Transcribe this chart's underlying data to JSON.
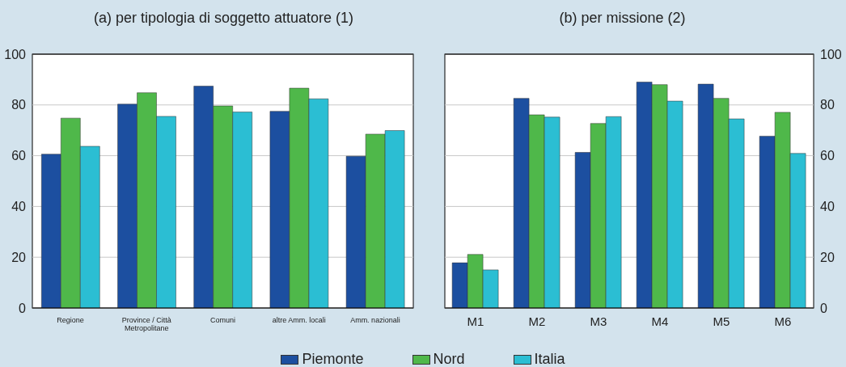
{
  "chart_data": [
    {
      "type": "bar",
      "title": "(a) per tipologia di soggetto attuatore (1)",
      "categories": [
        "Regione",
        "Province / Città Metropolitane",
        "Comuni",
        "altre Amm. locali",
        "Amm. nazionali"
      ],
      "series": [
        {
          "name": "Piemonte",
          "color": "#1c4fa0",
          "values": [
            60.6,
            80.3,
            87.4,
            77.5,
            59.8
          ]
        },
        {
          "name": "Nord",
          "color": "#4fb84a",
          "values": [
            74.8,
            84.8,
            79.6,
            86.6,
            68.5
          ]
        },
        {
          "name": "Italia",
          "color": "#2bbed3",
          "values": [
            63.7,
            75.5,
            77.2,
            82.4,
            69.9
          ]
        }
      ],
      "ylim": [
        0,
        100
      ],
      "yticks": [
        0,
        20,
        40,
        60,
        80,
        100
      ],
      "grid": "y",
      "legend": "bottom"
    },
    {
      "type": "bar",
      "title": "(b) per missione (2)",
      "categories": [
        "M1",
        "M2",
        "M3",
        "M4",
        "M5",
        "M6"
      ],
      "series": [
        {
          "name": "Piemonte",
          "color": "#1c4fa0",
          "axis": "y2",
          "values": [
            17.8,
            82.6,
            61.3,
            89.0,
            88.2,
            67.7
          ]
        },
        {
          "name": "Nord",
          "color": "#4fb84a",
          "axis": "y2",
          "values": [
            21.1,
            76.1,
            72.7,
            88.0,
            82.6,
            77.1
          ]
        },
        {
          "name": "Italia",
          "color": "#2bbed3",
          "axis": "y2",
          "values": [
            15.0,
            75.2,
            75.4,
            81.5,
            74.5,
            60.9
          ]
        }
      ],
      "y2lim": [
        0,
        100
      ],
      "y2ticks": [
        0,
        20,
        40,
        60,
        80,
        100
      ],
      "grid": "y",
      "legend": "bottom"
    }
  ]
}
